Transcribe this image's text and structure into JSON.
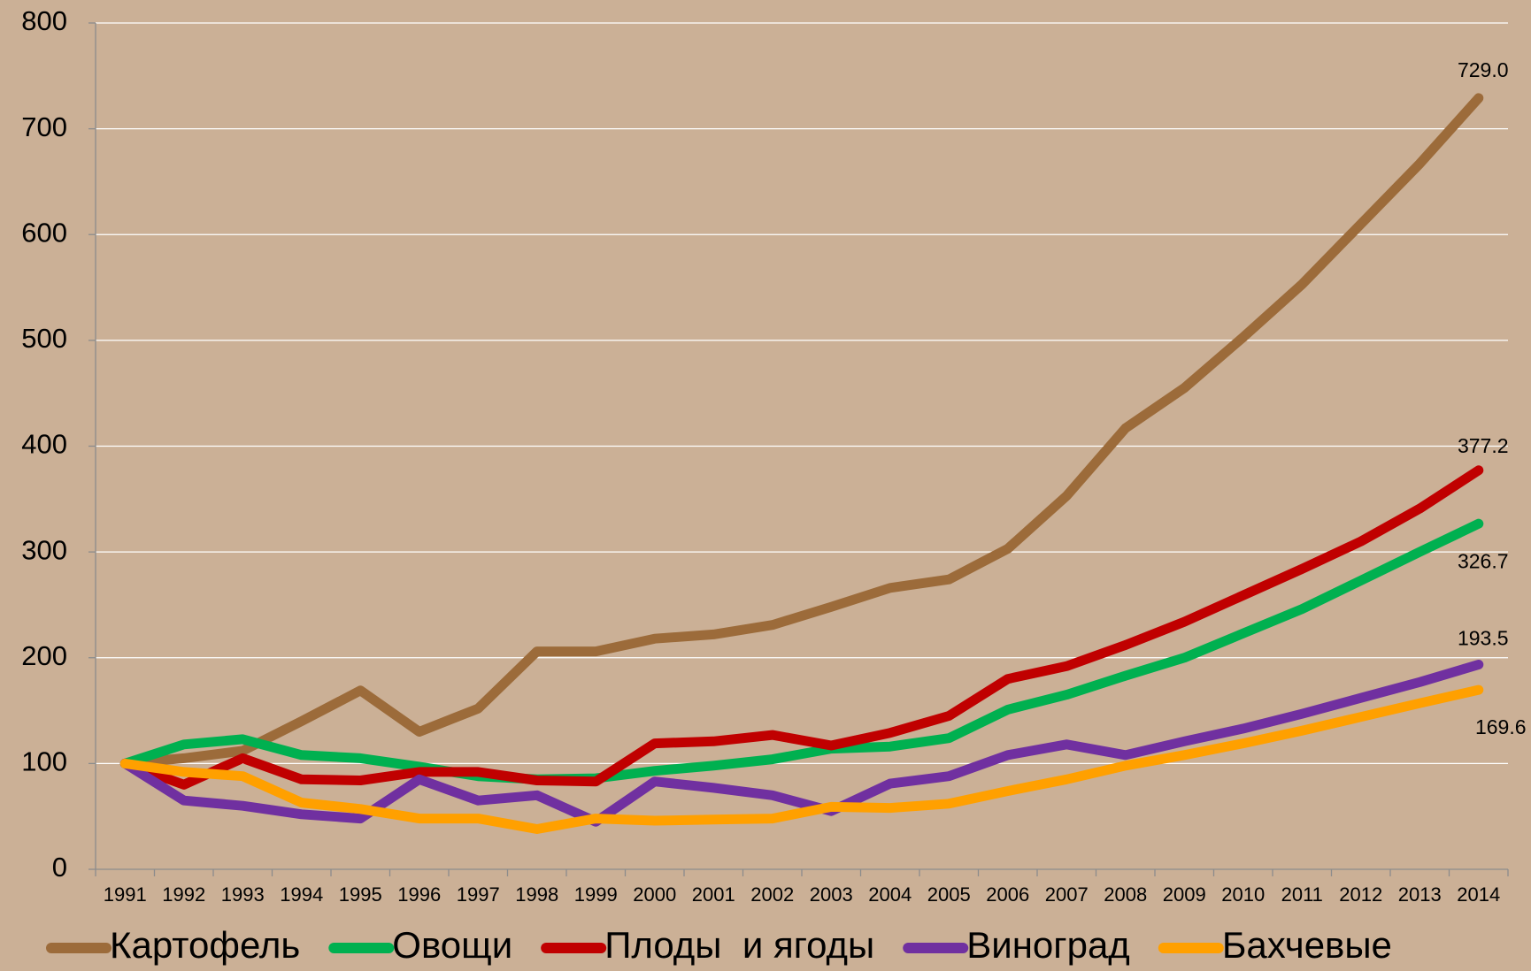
{
  "chart_data": {
    "type": "line",
    "categories": [
      "1991",
      "1992",
      "1993",
      "1994",
      "1995",
      "1996",
      "1997",
      "1998",
      "1999",
      "2000",
      "2001",
      "2002",
      "2003",
      "2004",
      "2005",
      "2006",
      "2007",
      "2008",
      "2009",
      "2010",
      "2011",
      "2012",
      "2013",
      "2014"
    ],
    "series": [
      {
        "name": "Картофель",
        "color": "#9c6b3a",
        "values": [
          100,
          105,
          112,
          140,
          169,
          130,
          152,
          206,
          206,
          218,
          222,
          231,
          248,
          266,
          274,
          303,
          353,
          417,
          455,
          503,
          553,
          610,
          667,
          729
        ],
        "value_labels": [
          null,
          null,
          null,
          null,
          null,
          null,
          null,
          null,
          null,
          null,
          null,
          null,
          null,
          null,
          null,
          null,
          null,
          null,
          null,
          null,
          null,
          null,
          null,
          "729.0"
        ]
      },
      {
        "name": "Овощи",
        "color": "#00b050",
        "values": [
          100,
          118,
          123,
          108,
          105,
          97,
          88,
          85,
          86,
          93,
          98,
          104,
          114,
          116,
          124,
          151,
          165,
          183,
          200,
          223,
          246,
          273,
          300,
          326.7
        ],
        "value_labels": [
          null,
          null,
          null,
          null,
          null,
          null,
          null,
          null,
          null,
          null,
          null,
          null,
          null,
          null,
          null,
          null,
          null,
          null,
          null,
          null,
          null,
          null,
          null,
          "326.7"
        ]
      },
      {
        "name": "Плоды  и ягоды",
        "color": "#c00000",
        "values": [
          100,
          80,
          105,
          85,
          84,
          92,
          92,
          84,
          83,
          119,
          121,
          127,
          117,
          129,
          145,
          180,
          192,
          212,
          234,
          259,
          284,
          310,
          341,
          377.2
        ],
        "value_labels": [
          null,
          null,
          null,
          null,
          null,
          null,
          null,
          null,
          null,
          null,
          null,
          null,
          null,
          null,
          null,
          null,
          null,
          null,
          null,
          null,
          null,
          null,
          null,
          "377.2"
        ]
      },
      {
        "name": "Виноград",
        "color": "#7030a0",
        "values": [
          100,
          65,
          60,
          52,
          48,
          85,
          65,
          70,
          45,
          83,
          77,
          70,
          55,
          81,
          88,
          108,
          118,
          108,
          121,
          133,
          147,
          162,
          177,
          193.5
        ],
        "value_labels": [
          null,
          null,
          null,
          null,
          null,
          null,
          null,
          null,
          null,
          null,
          null,
          null,
          null,
          null,
          null,
          null,
          null,
          null,
          null,
          null,
          null,
          null,
          null,
          "193.5"
        ]
      },
      {
        "name": "Бахчевые",
        "color": "#ffa000",
        "values": [
          100,
          92,
          88,
          63,
          57,
          48,
          48,
          38,
          48,
          46,
          47,
          48,
          59,
          58,
          62,
          74,
          85,
          98,
          108,
          119,
          131,
          144,
          157,
          169.6
        ],
        "value_labels": [
          null,
          null,
          null,
          null,
          null,
          null,
          null,
          null,
          null,
          null,
          null,
          null,
          null,
          null,
          null,
          null,
          null,
          null,
          null,
          null,
          null,
          null,
          null,
          "169.6"
        ]
      }
    ],
    "ylim": [
      0,
      800
    ],
    "yticks": [
      0,
      100,
      200,
      300,
      400,
      500,
      600,
      700,
      800
    ],
    "grid": true,
    "legend": "bottom"
  }
}
